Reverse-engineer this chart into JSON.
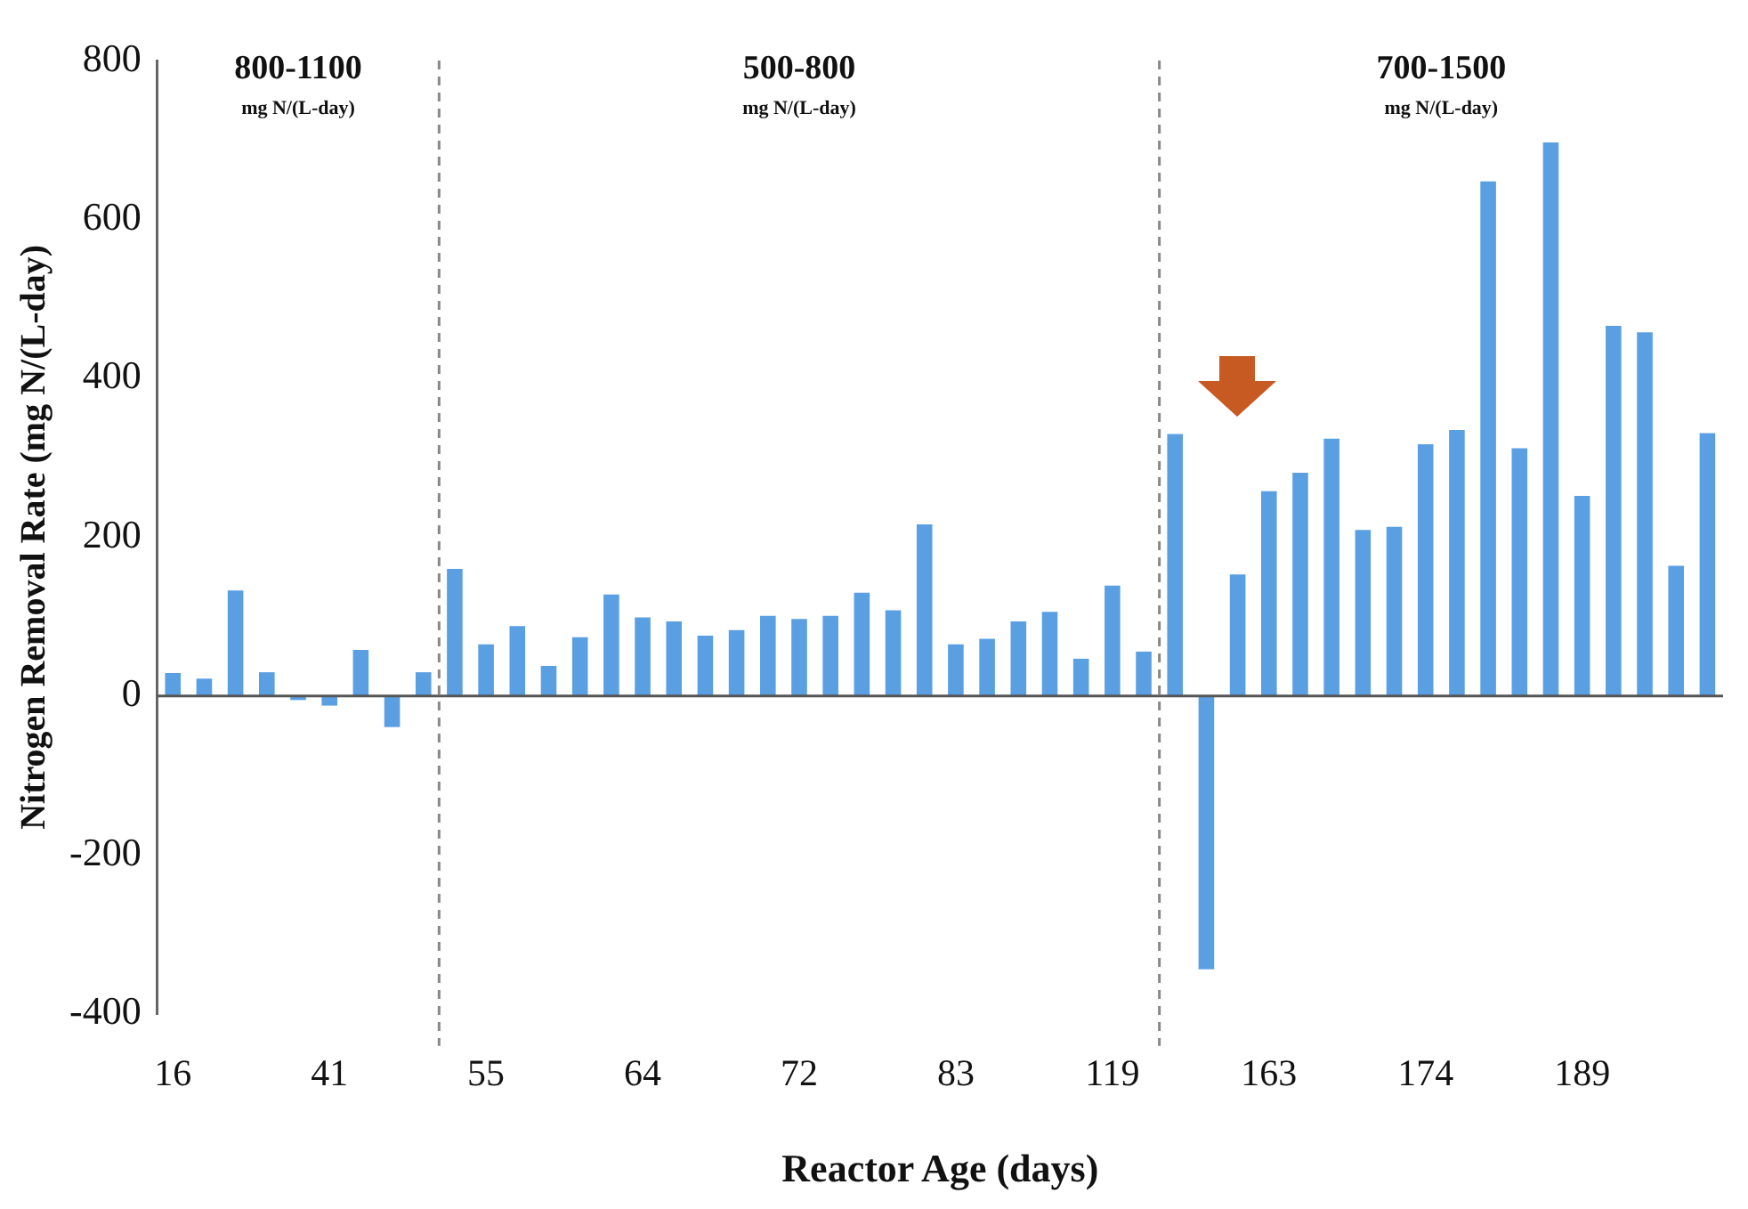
{
  "chart_data": {
    "type": "bar",
    "xlabel": "Reactor Age (days)",
    "ylabel": "Nitrogen Removal Rate (mg N/(L-day)",
    "categories": [
      "16",
      null,
      null,
      null,
      null,
      "41",
      null,
      null,
      null,
      null,
      "55",
      null,
      null,
      null,
      null,
      "64",
      null,
      null,
      null,
      null,
      "72",
      null,
      null,
      null,
      null,
      "83",
      null,
      null,
      null,
      null,
      "119",
      null,
      null,
      null,
      null,
      "163",
      null,
      null,
      null,
      null,
      "174",
      null,
      null,
      null,
      null,
      "189",
      null,
      null,
      null,
      null
    ],
    "values": [
      29,
      22,
      133,
      30,
      -5,
      -12,
      58,
      -39,
      30,
      160,
      65,
      88,
      38,
      74,
      128,
      99,
      94,
      76,
      83,
      101,
      97,
      101,
      130,
      108,
      216,
      65,
      72,
      94,
      106,
      47,
      139,
      56,
      330,
      -344,
      153,
      258,
      281,
      324,
      209,
      213,
      317,
      335,
      648,
      312,
      697,
      252,
      466,
      458,
      164,
      331
    ],
    "color": "#5b9fe3",
    "ylim": [
      -400,
      800
    ],
    "yticks": [
      -400,
      -200,
      0,
      200,
      400,
      600,
      800
    ],
    "grid": false,
    "legend": false,
    "annotations": [
      "800-1100",
      "mg N/(L-day)",
      "500-800",
      "mg N/(L-day)",
      "700-1500",
      "mg N/(L-day)"
    ]
  }
}
